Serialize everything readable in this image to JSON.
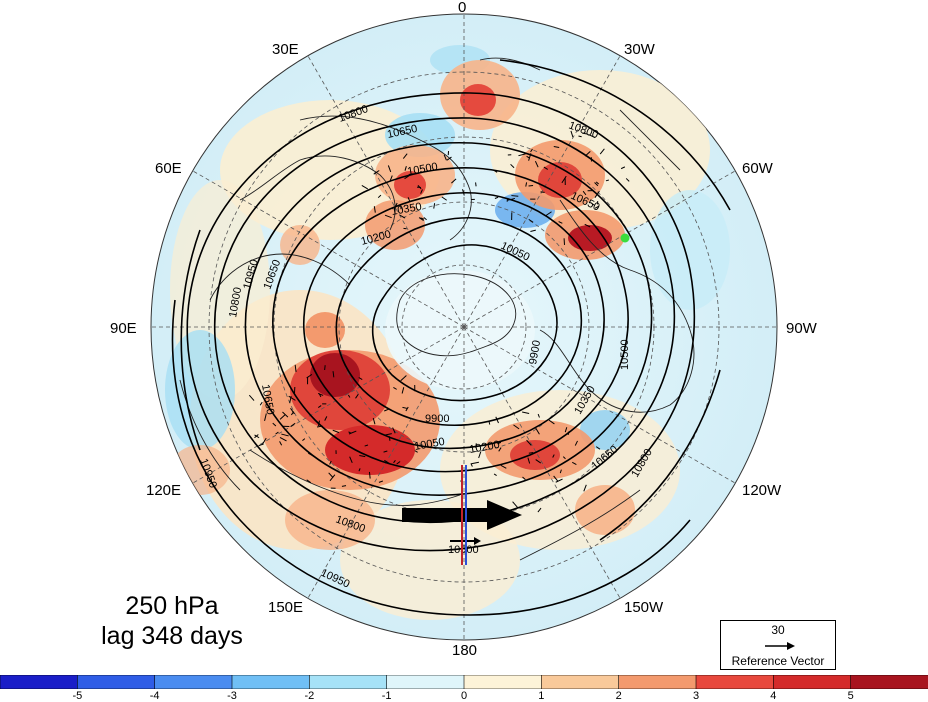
{
  "panel": {
    "level": "250 hPa",
    "lag": "lag 348 days"
  },
  "longitude_labels": [
    {
      "key": "0",
      "text": "0"
    },
    {
      "key": "30w",
      "text": "30W"
    },
    {
      "key": "60w",
      "text": "60W"
    },
    {
      "key": "90w",
      "text": "90W"
    },
    {
      "key": "120w",
      "text": "120W"
    },
    {
      "key": "150w",
      "text": "150W"
    },
    {
      "key": "180",
      "text": "180"
    },
    {
      "key": "150e",
      "text": "150E"
    },
    {
      "key": "120e",
      "text": "120E"
    },
    {
      "key": "90e",
      "text": "90E"
    },
    {
      "key": "60e",
      "text": "60E"
    },
    {
      "key": "30e",
      "text": "30E"
    }
  ],
  "contour_labels": [
    "10800",
    "10650",
    "10500",
    "10350",
    "10200",
    "10050",
    "9900",
    "9900",
    "10050",
    "10200",
    "10350",
    "10500",
    "10650",
    "10800",
    "10950",
    "10950",
    "10800",
    "10650",
    "10800",
    "10950",
    "10650",
    "10800",
    "10500",
    "10650"
  ],
  "reference_vector": {
    "magnitude": "30",
    "label": "Reference Vector"
  },
  "colorbar": {
    "ticks": [
      "-5",
      "-4",
      "-3",
      "-2",
      "-1",
      "0",
      "1",
      "2",
      "3",
      "4",
      "5"
    ],
    "colors": [
      "#1a1ec8",
      "#2f5de6",
      "#4a8cf0",
      "#70bff5",
      "#a6e2f7",
      "#dff5fa",
      "#fdf3d8",
      "#f9c99a",
      "#f39a6e",
      "#e8483d",
      "#d42a2a",
      "#a8141f"
    ]
  },
  "marker_color": "#3cdc3c"
}
